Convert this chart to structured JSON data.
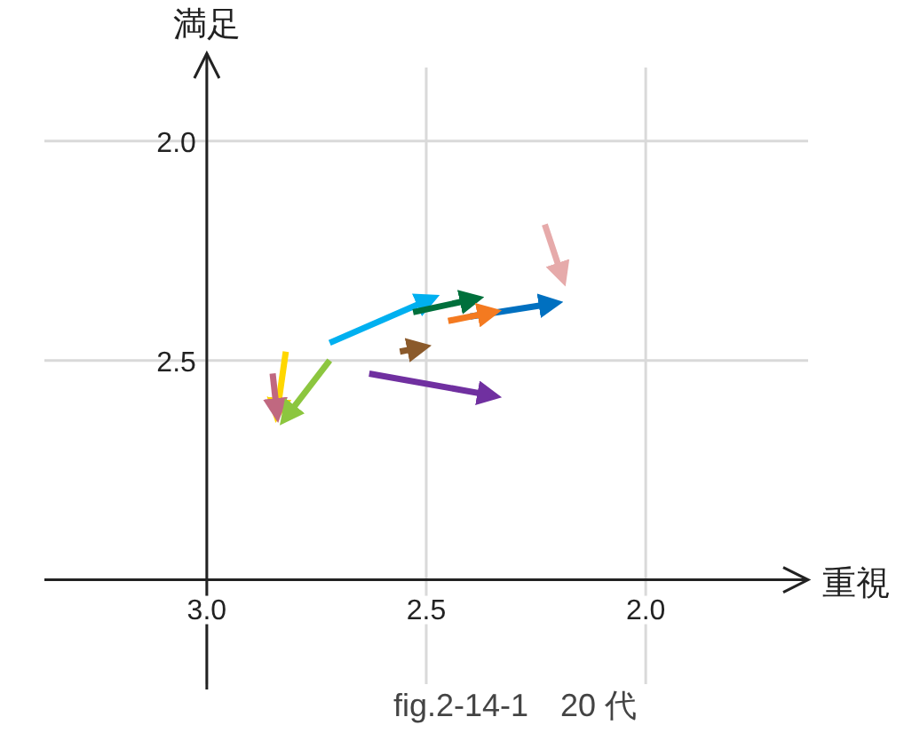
{
  "chart_data": {
    "type": "line",
    "title": "fig.2-14-1　20 代",
    "xlabel": "重視",
    "ylabel": "満足",
    "xlim": [
      3.37,
      1.63
    ],
    "ylim": [
      3.25,
      1.8
    ],
    "xticks": [
      {
        "value": 3.0,
        "label": "3.0"
      },
      {
        "value": 2.5,
        "label": "2.5"
      },
      {
        "value": 2.0,
        "label": "2.0"
      }
    ],
    "yticks": [
      {
        "value": 3.0,
        "label": null
      },
      {
        "value": 2.5,
        "label": "2.5"
      },
      {
        "value": 2.0,
        "label": "2.0"
      }
    ],
    "grid": true,
    "series": [
      {
        "color": "#00b0f0",
        "x": [
          2.72,
          2.49
        ],
        "values": [
          2.46,
          2.36
        ]
      },
      {
        "color": "#00703c",
        "x": [
          2.53,
          2.39
        ],
        "values": [
          2.39,
          2.36
        ]
      },
      {
        "color": "#0070c0",
        "x": [
          2.4,
          2.21
        ],
        "values": [
          2.4,
          2.37
        ]
      },
      {
        "color": "#f47a20",
        "x": [
          2.45,
          2.35
        ],
        "values": [
          2.41,
          2.39
        ]
      },
      {
        "color": "#e6aaaa",
        "x": [
          2.23,
          2.19
        ],
        "values": [
          2.19,
          2.31
        ]
      },
      {
        "color": "#8b5a2b",
        "x": [
          2.56,
          2.51
        ],
        "values": [
          2.48,
          2.47
        ]
      },
      {
        "color": "#7030a0",
        "x": [
          2.63,
          2.35
        ],
        "values": [
          2.53,
          2.58
        ]
      },
      {
        "color": "#ffd700",
        "x": [
          2.82,
          2.84
        ],
        "values": [
          2.48,
          2.62
        ]
      },
      {
        "color": "#c06880",
        "x": [
          2.85,
          2.84
        ],
        "values": [
          2.53,
          2.62
        ]
      },
      {
        "color": "#8cc63f",
        "x": [
          2.72,
          2.82
        ],
        "values": [
          2.5,
          2.63
        ]
      }
    ]
  }
}
